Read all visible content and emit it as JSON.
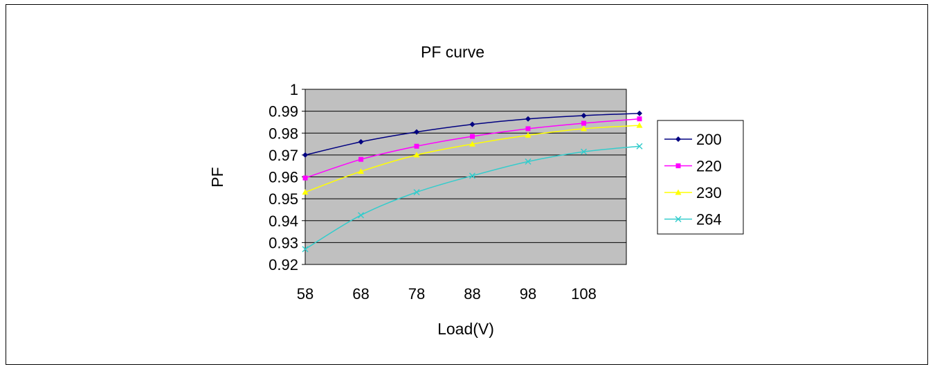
{
  "chart_data": {
    "type": "line",
    "title": "PF curve",
    "xlabel": "Load(V)",
    "ylabel": "PF",
    "categories": [
      "58",
      "68",
      "78",
      "88",
      "98",
      "108",
      ""
    ],
    "x_tick_labels": [
      "58",
      "68",
      "78",
      "88",
      "98",
      "108"
    ],
    "ylim": [
      0.92,
      1.0
    ],
    "y_ticks": [
      "0.92",
      "0.93",
      "0.94",
      "0.95",
      "0.96",
      "0.97",
      "0.98",
      "0.99",
      "1"
    ],
    "grid": true,
    "legend_position": "right",
    "plot_background": "#c0c0c0",
    "series": [
      {
        "name": "200",
        "color": "#000080",
        "marker": "diamond",
        "values": [
          0.97,
          0.976,
          0.9805,
          0.984,
          0.9865,
          0.988,
          0.989
        ]
      },
      {
        "name": "220",
        "color": "#ff00ff",
        "marker": "square",
        "values": [
          0.9595,
          0.968,
          0.974,
          0.9785,
          0.982,
          0.9845,
          0.9865
        ]
      },
      {
        "name": "230",
        "color": "#ffff00",
        "marker": "triangle",
        "values": [
          0.953,
          0.9625,
          0.97,
          0.975,
          0.979,
          0.982,
          0.9835
        ]
      },
      {
        "name": "264",
        "color": "#33cccc",
        "marker": "x",
        "values": [
          0.927,
          0.9425,
          0.953,
          0.9605,
          0.967,
          0.9715,
          0.974
        ]
      }
    ]
  }
}
